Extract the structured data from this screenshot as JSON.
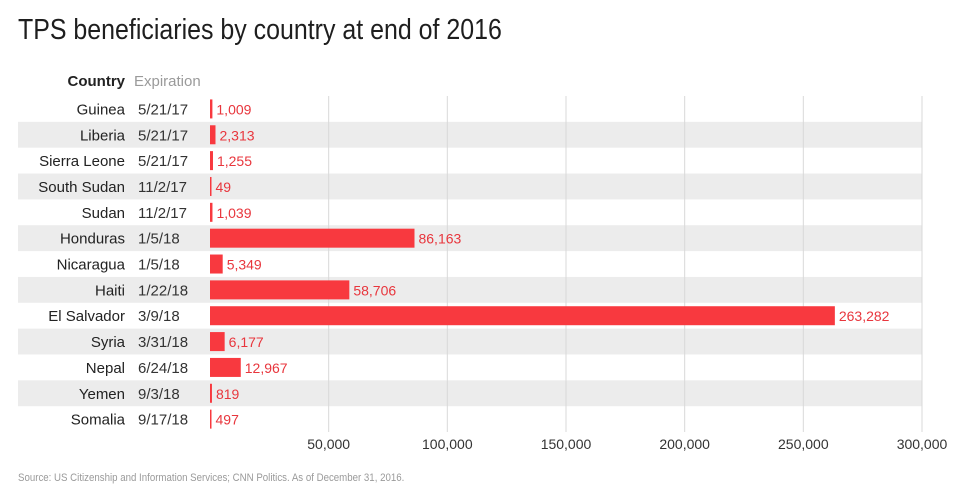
{
  "header": {
    "title": "TPS beneficiaries by country at end of 2016",
    "column_country": "Country",
    "column_expiration": "Expiration"
  },
  "footer": {
    "source": "Source: US Citizenship and Information Services; CNN Politics. As of December 31, 2016."
  },
  "colors": {
    "bar": "#f8393f",
    "label": "#e8363d",
    "band": "#ececec",
    "grid": "#d9d9d9",
    "axis_text": "#333333",
    "header_muted": "#9a9a9a"
  },
  "chart_data": {
    "type": "bar",
    "orientation": "horizontal",
    "title": "TPS beneficiaries by country at end of 2016",
    "categories": [
      "Guinea",
      "Liberia",
      "Sierra Leone",
      "South Sudan",
      "Sudan",
      "Honduras",
      "Nicaragua",
      "Haiti",
      "El Salvador",
      "Syria",
      "Nepal",
      "Yemen",
      "Somalia"
    ],
    "expirations": [
      "5/21/17",
      "5/21/17",
      "5/21/17",
      "11/2/17",
      "11/2/17",
      "1/5/18",
      "1/5/18",
      "1/22/18",
      "3/9/18",
      "3/31/18",
      "6/24/18",
      "9/3/18",
      "9/17/18"
    ],
    "values": [
      1009,
      2313,
      1255,
      49,
      1039,
      86163,
      5349,
      58706,
      263282,
      6177,
      12967,
      819,
      497
    ],
    "value_labels": [
      "1,009",
      "2,313",
      "1,255",
      "49",
      "1,039",
      "86,163",
      "5,349",
      "58,706",
      "263,282",
      "6,177",
      "12,967",
      "819",
      "497"
    ],
    "xlim": [
      0,
      300000
    ],
    "xticks": [
      50000,
      100000,
      150000,
      200000,
      250000,
      300000
    ],
    "xtick_labels": [
      "50,000",
      "100,000",
      "150,000",
      "200,000",
      "250,000",
      "300,000"
    ],
    "grid": true,
    "xlabel": "",
    "ylabel": ""
  }
}
